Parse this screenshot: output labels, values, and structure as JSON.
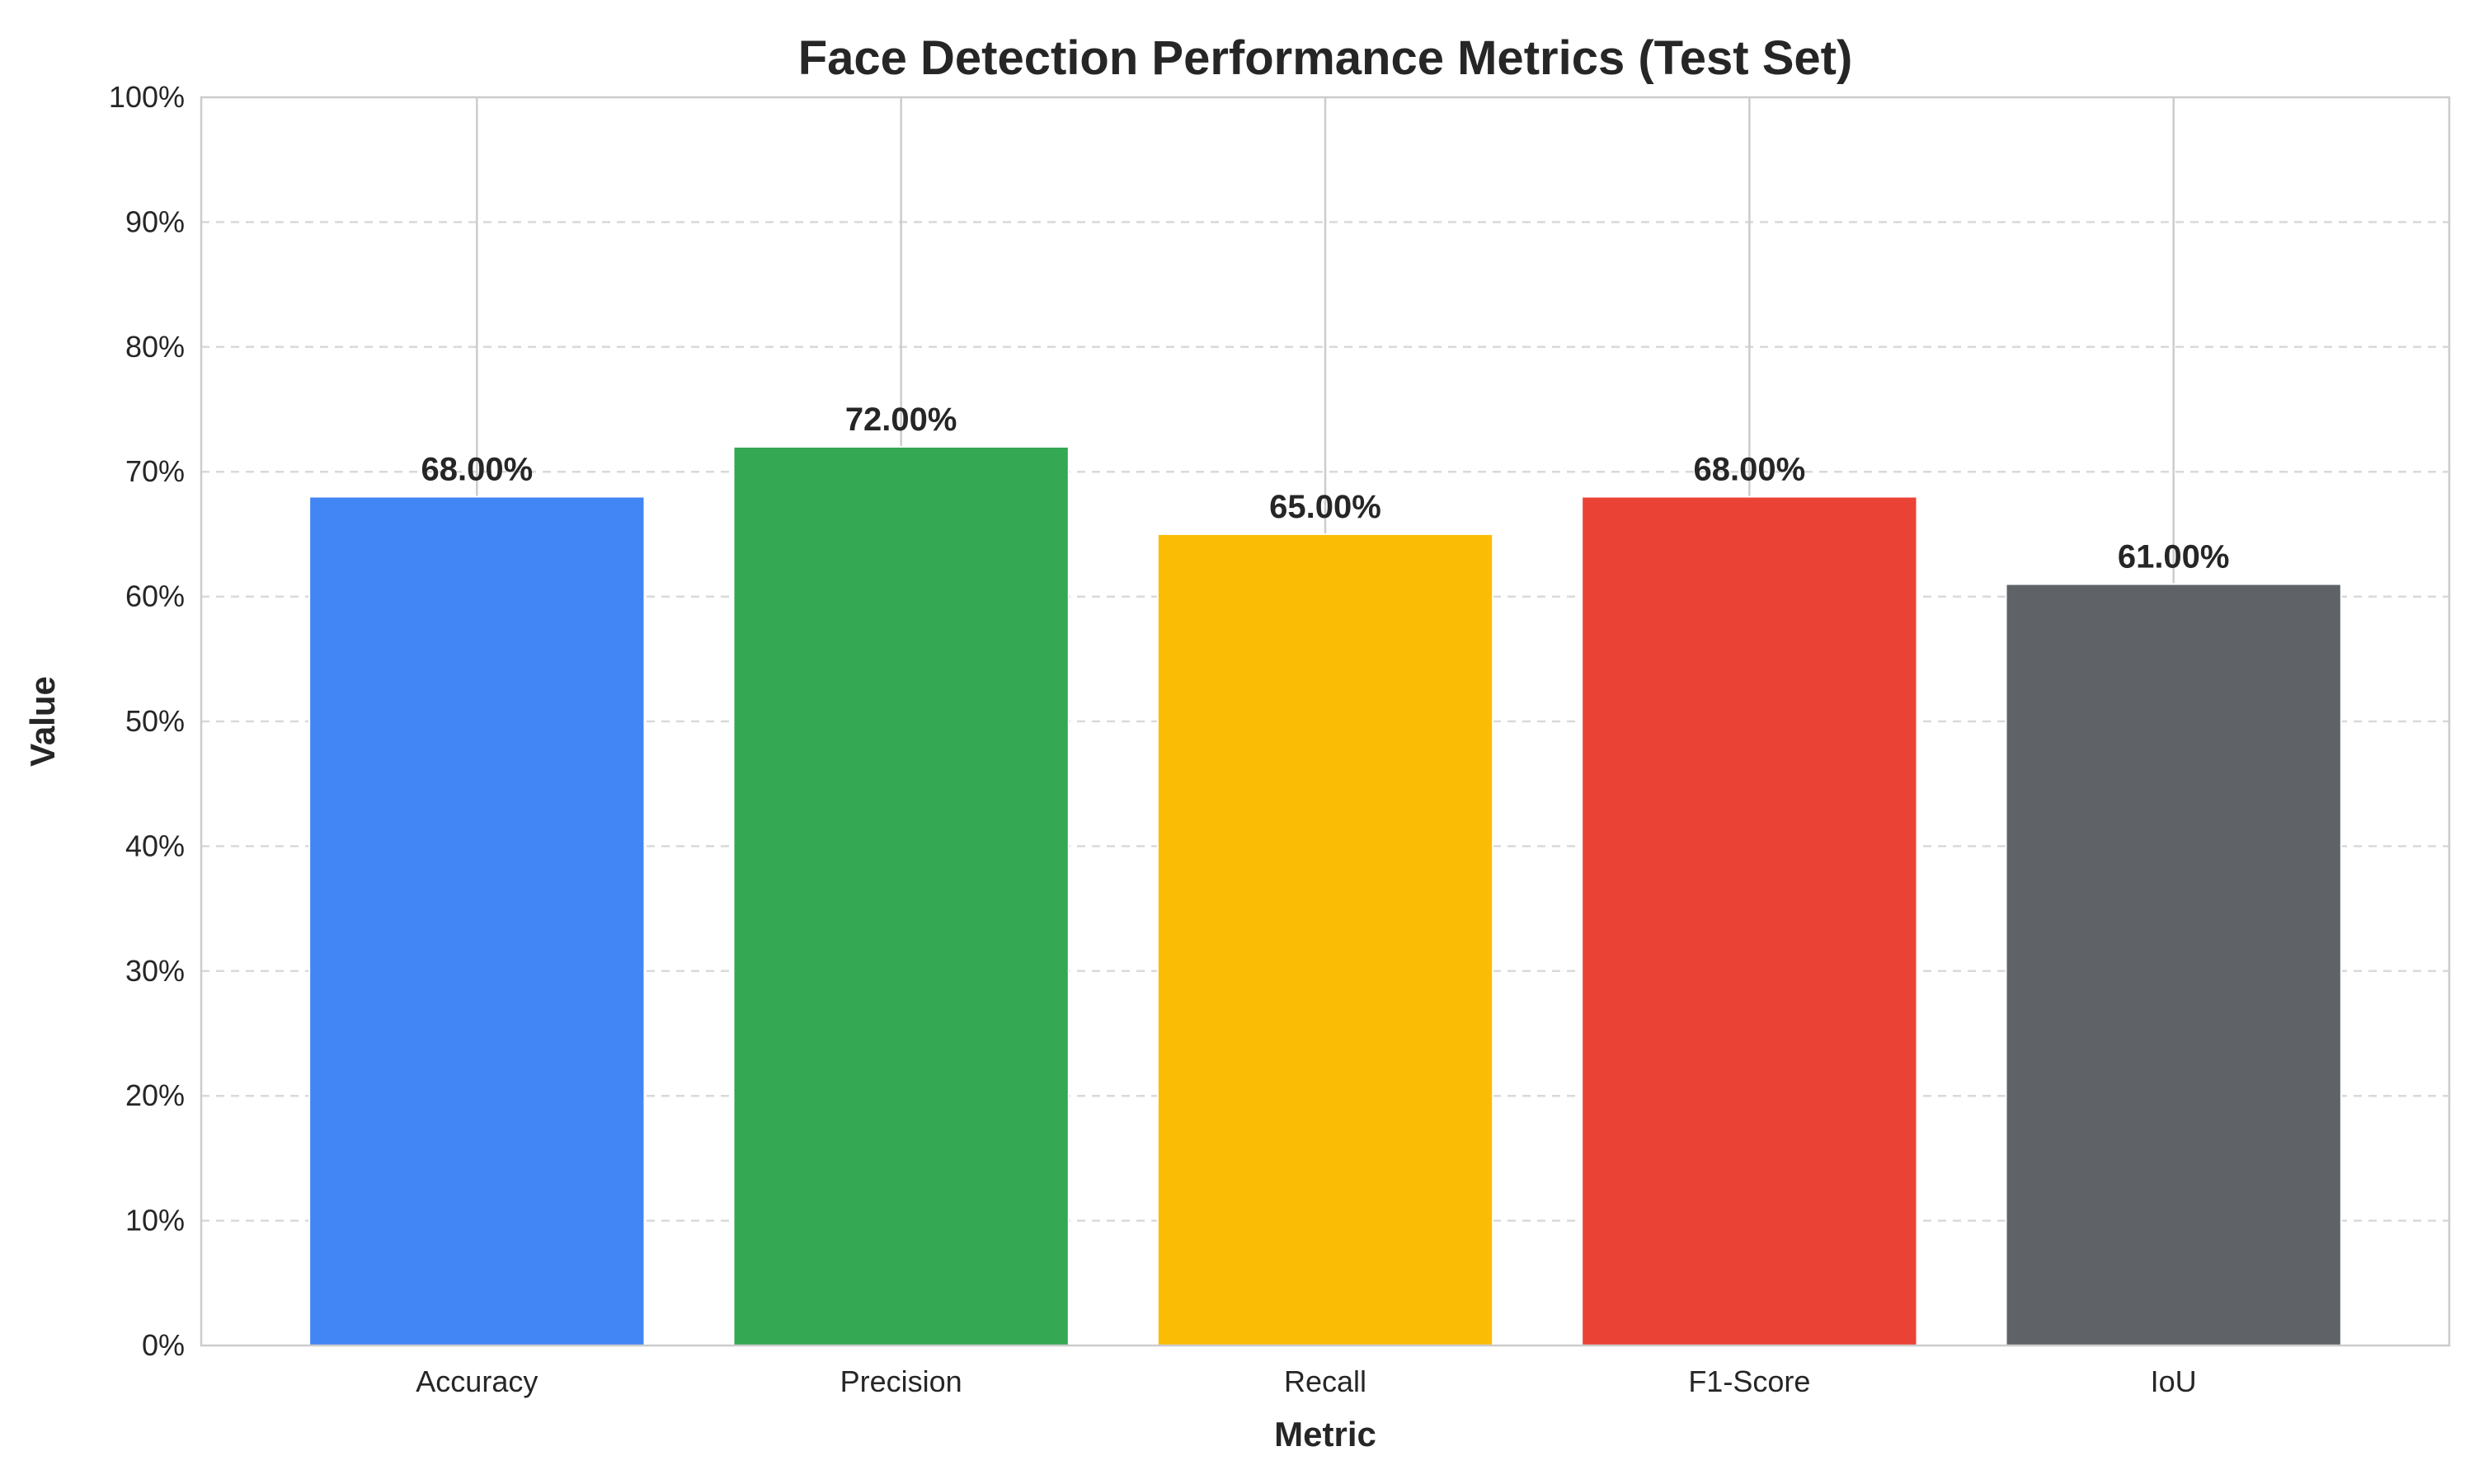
{
  "chart_data": {
    "type": "bar",
    "title": "Face Detection Performance Metrics (Test Set)",
    "xlabel": "Metric",
    "ylabel": "Value",
    "categories": [
      "Accuracy",
      "Precision",
      "Recall",
      "F1-Score",
      "IoU"
    ],
    "values": [
      68.0,
      72.0,
      65.0,
      68.0,
      61.0
    ],
    "value_labels": [
      "68.00%",
      "72.00%",
      "65.00%",
      "68.00%",
      "61.00%"
    ],
    "colors": [
      "#4285F4",
      "#34A853",
      "#FBBC05",
      "#EA4335",
      "#5F6368"
    ],
    "ylim": [
      0,
      100
    ],
    "yticks": [
      0,
      10,
      20,
      30,
      40,
      50,
      60,
      70,
      80,
      90,
      100
    ],
    "ytick_labels": [
      "0%",
      "10%",
      "20%",
      "30%",
      "40%",
      "50%",
      "60%",
      "70%",
      "80%",
      "90%",
      "100%"
    ],
    "grid": {
      "y": "dashed",
      "x": "solid"
    }
  }
}
